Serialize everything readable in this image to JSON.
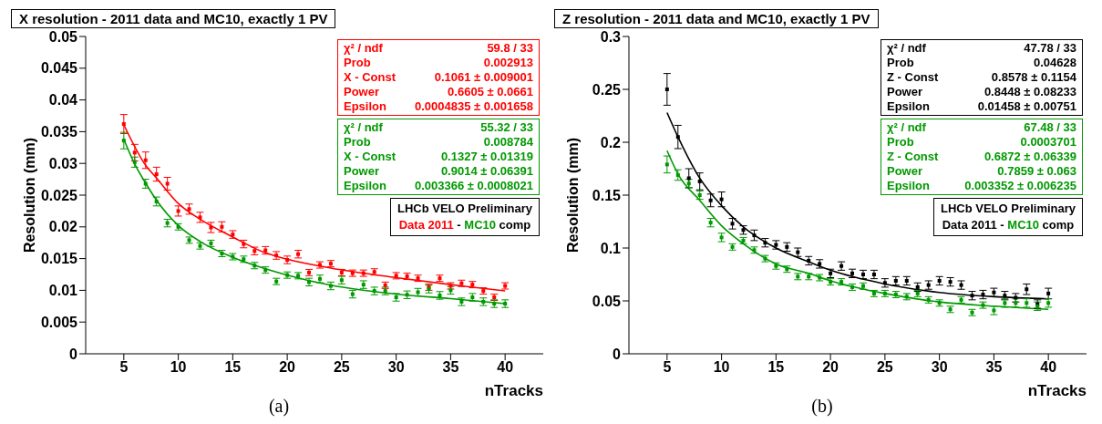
{
  "chart_data": [
    {
      "type": "scatter",
      "title": "X resolution - 2011 data and MC10, exactly 1 PV",
      "xlabel": "nTracks",
      "ylabel": "Resolution (mm)",
      "xlim": [
        1.5,
        43.5
      ],
      "xticks": [
        5,
        10,
        15,
        20,
        25,
        30,
        35,
        40
      ],
      "ylim": [
        0,
        0.05
      ],
      "yticks": [
        0,
        0.005,
        0.01,
        0.015,
        0.02,
        0.025,
        0.03,
        0.035,
        0.04,
        0.045,
        0.05
      ],
      "marker": "square",
      "series": [
        {
          "color": "#ff0000",
          "x": [
            5,
            6,
            7,
            8,
            9,
            10,
            11,
            12,
            13,
            14,
            15,
            16,
            17,
            18,
            19,
            20,
            21,
            22,
            23,
            24,
            25,
            26,
            27,
            28,
            29,
            30,
            31,
            32,
            33,
            34,
            35,
            36,
            37,
            38,
            39,
            40
          ],
          "values": [
            0.0362,
            0.0317,
            0.0305,
            0.0283,
            0.0268,
            0.0225,
            0.0228,
            0.0215,
            0.0199,
            0.02,
            0.0188,
            0.0173,
            0.0162,
            0.0163,
            0.0155,
            0.0148,
            0.0157,
            0.0128,
            0.014,
            0.0142,
            0.0128,
            0.0127,
            0.0127,
            0.0129,
            0.0108,
            0.0123,
            0.0122,
            0.0119,
            0.0105,
            0.0119,
            0.0107,
            0.0111,
            0.0109,
            0.0099,
            0.0089,
            0.0107
          ],
          "errors": [
            0.0015,
            0.0013,
            0.0013,
            0.0011,
            0.001,
            0.0008,
            0.0008,
            0.0008,
            0.0008,
            0.0008,
            0.0006,
            0.0006,
            0.0006,
            0.0006,
            0.0006,
            0.0006,
            0.0006,
            0.0005,
            0.0005,
            0.0005,
            0.0005,
            0.0005,
            0.0005,
            0.0005,
            0.0005,
            0.0005,
            0.0005,
            0.0005,
            0.0005,
            0.0005,
            0.0005,
            0.0005,
            0.0005,
            0.0005,
            0.0005,
            0.0005
          ]
        },
        {
          "color": "#009900",
          "x": [
            5,
            6,
            7,
            8,
            9,
            10,
            11,
            12,
            13,
            14,
            15,
            16,
            17,
            18,
            19,
            20,
            21,
            22,
            23,
            24,
            25,
            26,
            27,
            28,
            29,
            30,
            31,
            32,
            33,
            34,
            35,
            36,
            37,
            38,
            39,
            40
          ],
          "values": [
            0.0336,
            0.0302,
            0.0268,
            0.024,
            0.0206,
            0.02,
            0.0179,
            0.017,
            0.0174,
            0.0158,
            0.0153,
            0.0149,
            0.0139,
            0.0132,
            0.0114,
            0.0124,
            0.0123,
            0.0113,
            0.0118,
            0.0107,
            0.0116,
            0.0094,
            0.0109,
            0.0099,
            0.0099,
            0.0089,
            0.0093,
            0.0097,
            0.0102,
            0.0092,
            0.01,
            0.0082,
            0.0089,
            0.0082,
            0.0079,
            0.0079
          ],
          "errors": [
            0.0013,
            0.0008,
            0.0007,
            0.0007,
            0.0006,
            0.0005,
            0.0005,
            0.0005,
            0.0005,
            0.0005,
            0.0005,
            0.0005,
            0.0005,
            0.0005,
            0.0005,
            0.0005,
            0.0005,
            0.0006,
            0.0006,
            0.0006,
            0.0006,
            0.0006,
            0.0006,
            0.0006,
            0.0006,
            0.0006,
            0.0006,
            0.0006,
            0.0006,
            0.0006,
            0.0006,
            0.0006,
            0.0006,
            0.0006,
            0.0006,
            0.0006
          ]
        },
        {
          "type": "line",
          "marker": "none",
          "color": "#ff0000",
          "x": [
            5,
            7,
            8,
            10,
            12,
            15,
            18,
            20,
            24,
            30,
            35,
            40
          ],
          "values": [
            0.0361,
            0.0297,
            0.0277,
            0.0237,
            0.0212,
            0.0184,
            0.0159,
            0.0149,
            0.0135,
            0.012,
            0.0109,
            0.0099
          ]
        },
        {
          "type": "line",
          "marker": "none",
          "color": "#009900",
          "x": [
            5,
            6,
            7,
            8,
            10,
            12,
            15,
            18,
            20,
            24,
            30,
            35,
            40
          ],
          "values": [
            0.0338,
            0.0299,
            0.0269,
            0.0242,
            0.0202,
            0.0177,
            0.0152,
            0.0134,
            0.0124,
            0.0108,
            0.0094,
            0.0087,
            0.0079
          ]
        }
      ],
      "annotations": [
        "χ² / ndf",
        "59.8 / 33",
        "Prob",
        "0.002913",
        "X - Const",
        "0.1061 ± 0.009001",
        "Power",
        "0.6605 ± 0.0661",
        "Epsilon",
        "0.0004835 ± 0.001658",
        "χ² / ndf",
        "55.32 / 33",
        "Prob",
        "0.008784",
        "X - Const",
        "0.1327 ± 0.01319",
        "Power",
        "0.9014 ± 0.06391",
        "Epsilon",
        "0.003366 ± 0.0008021",
        "LHCb VELO Preliminary",
        "Data 2011",
        "-",
        "MC10",
        "comp",
        "(a)"
      ]
    },
    {
      "type": "scatter",
      "title": "Z resolution - 2011 data and MC10, exactly 1 PV",
      "xlabel": "nTracks",
      "ylabel": "Resolution (mm)",
      "xlim": [
        1.5,
        43.5
      ],
      "xticks": [
        5,
        10,
        15,
        20,
        25,
        30,
        35,
        40
      ],
      "ylim": [
        0,
        0.3
      ],
      "yticks": [
        0,
        0.05,
        0.1,
        0.15,
        0.2,
        0.25,
        0.3
      ],
      "marker": "square",
      "series": [
        {
          "color": "#000000",
          "x": [
            5,
            6,
            7,
            8,
            9,
            10,
            11,
            12,
            13,
            14,
            15,
            16,
            17,
            18,
            19,
            20,
            21,
            22,
            23,
            24,
            25,
            26,
            27,
            28,
            29,
            30,
            31,
            32,
            33,
            34,
            35,
            36,
            37,
            38,
            39,
            40
          ],
          "values": [
            0.25,
            0.205,
            0.166,
            0.163,
            0.145,
            0.146,
            0.123,
            0.117,
            0.112,
            0.105,
            0.103,
            0.101,
            0.096,
            0.088,
            0.085,
            0.076,
            0.083,
            0.076,
            0.075,
            0.075,
            0.067,
            0.069,
            0.069,
            0.063,
            0.065,
            0.069,
            0.068,
            0.065,
            0.055,
            0.056,
            0.058,
            0.055,
            0.053,
            0.061,
            0.047,
            0.057
          ],
          "errors": [
            0.015,
            0.011,
            0.009,
            0.008,
            0.006,
            0.007,
            0.005,
            0.004,
            0.005,
            0.004,
            0.004,
            0.004,
            0.004,
            0.004,
            0.004,
            0.004,
            0.004,
            0.004,
            0.004,
            0.004,
            0.004,
            0.004,
            0.004,
            0.004,
            0.004,
            0.004,
            0.004,
            0.004,
            0.004,
            0.004,
            0.004,
            0.004,
            0.004,
            0.005,
            0.004,
            0.005
          ]
        },
        {
          "color": "#009900",
          "x": [
            5,
            6,
            7,
            8,
            9,
            10,
            11,
            12,
            13,
            14,
            15,
            16,
            17,
            18,
            19,
            20,
            21,
            22,
            23,
            24,
            25,
            26,
            27,
            28,
            29,
            30,
            31,
            32,
            33,
            34,
            35,
            36,
            37,
            38,
            39,
            40
          ],
          "values": [
            0.179,
            0.169,
            0.161,
            0.15,
            0.124,
            0.11,
            0.101,
            0.107,
            0.098,
            0.09,
            0.083,
            0.08,
            0.073,
            0.073,
            0.072,
            0.068,
            0.068,
            0.063,
            0.064,
            0.057,
            0.057,
            0.056,
            0.054,
            0.057,
            0.051,
            0.048,
            0.042,
            0.051,
            0.039,
            0.046,
            0.041,
            0.048,
            0.048,
            0.048,
            0.045,
            0.048
          ],
          "errors": [
            0.008,
            0.005,
            0.004,
            0.004,
            0.004,
            0.004,
            0.003,
            0.003,
            0.003,
            0.003,
            0.003,
            0.003,
            0.003,
            0.003,
            0.003,
            0.003,
            0.003,
            0.003,
            0.003,
            0.003,
            0.003,
            0.003,
            0.003,
            0.003,
            0.003,
            0.003,
            0.003,
            0.003,
            0.003,
            0.003,
            0.004,
            0.004,
            0.004,
            0.004,
            0.004,
            0.004
          ]
        },
        {
          "type": "line",
          "marker": "none",
          "color": "#000000",
          "x": [
            5,
            6,
            8,
            10,
            12,
            15,
            18,
            20,
            25,
            30,
            35,
            40
          ],
          "values": [
            0.228,
            0.205,
            0.166,
            0.14,
            0.12,
            0.1,
            0.087,
            0.079,
            0.066,
            0.058,
            0.054,
            0.052
          ]
        },
        {
          "type": "line",
          "marker": "none",
          "color": "#009900",
          "x": [
            5,
            6,
            8,
            10,
            12,
            15,
            18,
            20,
            25,
            30,
            35,
            40
          ],
          "values": [
            0.192,
            0.17,
            0.145,
            0.121,
            0.104,
            0.085,
            0.076,
            0.069,
            0.057,
            0.049,
            0.045,
            0.042
          ]
        }
      ],
      "annotations": [
        "χ² / ndf",
        "47.78 / 33",
        "Prob",
        "0.04628",
        "Z - Const",
        "0.8578 ± 0.1154",
        "Power",
        "0.8448 ± 0.08233",
        "Epsilon",
        "0.01458 ± 0.00751",
        "χ² / ndf",
        "67.48 / 33",
        "Prob",
        "0.0003701",
        "Z - Const",
        "0.6872 ± 0.06339",
        "Power",
        "0.7859 ± 0.063",
        "Epsilon",
        "0.003352 ± 0.006235",
        "LHCb VELO Preliminary",
        "Data 2011",
        "-",
        "MC10",
        "comp",
        "(b)"
      ]
    }
  ]
}
